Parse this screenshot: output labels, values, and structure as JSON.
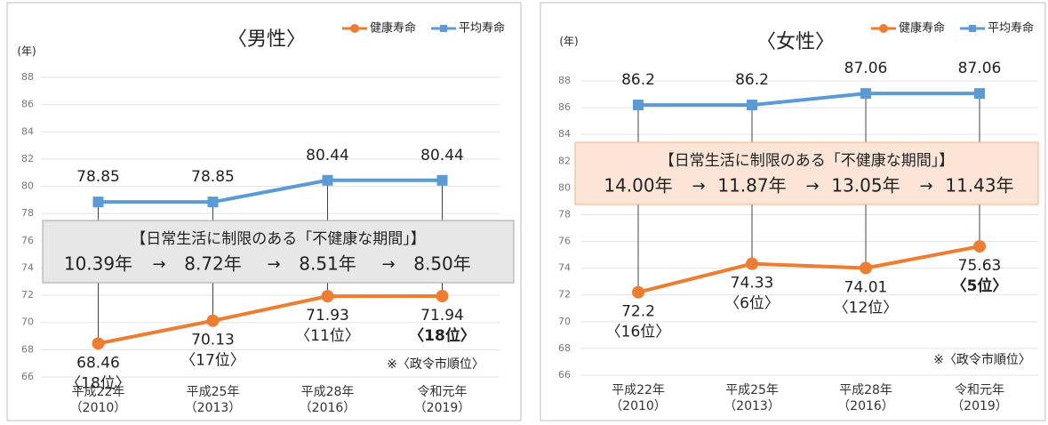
{
  "chart_data": [
    {
      "type": "line",
      "title": "〈男性〉",
      "y_label": "(年)",
      "categories": [
        "平成22年\n（2010）",
        "平成25年\n（2013）",
        "平成28年\n（2016）",
        "令和元年\n（2019）"
      ],
      "series": [
        {
          "name": "健康寿命",
          "color": "#ed7d31",
          "marker": "circle",
          "values": [
            68.46,
            70.13,
            71.93,
            71.94
          ],
          "ranks": [
            "〈18位〉",
            "〈17位〉",
            "〈11位〉",
            "〈18位〉"
          ]
        },
        {
          "name": "平均寿命",
          "color": "#5b9bd5",
          "marker": "square",
          "values": [
            78.85,
            78.85,
            80.44,
            80.44
          ]
        }
      ],
      "highlight_index": 3,
      "ylim": [
        66,
        88
      ],
      "yticks": [
        66,
        68,
        70,
        72,
        74,
        76,
        78,
        80,
        82,
        84,
        86,
        88
      ],
      "grid": true,
      "legend": "top-right",
      "note": "※〈政令市順位〉",
      "box": {
        "title": "【日常生活に制限のある「不健康な期間」】",
        "periods": [
          "10.39年",
          "8.72年",
          "8.51年",
          "8.50年"
        ],
        "arrow": "→",
        "fill": "#e7e7e7",
        "border": "#a6a6a6"
      }
    },
    {
      "type": "line",
      "title": "〈女性〉",
      "y_label": "(年)",
      "categories": [
        "平成22年\n（2010）",
        "平成25年\n（2013）",
        "平成28年\n（2016）",
        "令和元年\n（2019）"
      ],
      "series": [
        {
          "name": "健康寿命",
          "color": "#ed7d31",
          "marker": "circle",
          "values": [
            72.2,
            74.33,
            74.01,
            75.63
          ],
          "ranks": [
            "〈16位〉",
            "〈6位〉",
            "〈12位〉",
            "〈5位〉"
          ]
        },
        {
          "name": "平均寿命",
          "color": "#5b9bd5",
          "marker": "square",
          "values": [
            86.2,
            86.2,
            87.06,
            87.06
          ]
        }
      ],
      "highlight_index": 3,
      "ylim": [
        66,
        88
      ],
      "yticks": [
        66,
        68,
        70,
        72,
        74,
        76,
        78,
        80,
        82,
        84,
        86,
        88
      ],
      "grid": true,
      "legend": "top-right",
      "note": "※〈政令市順位〉",
      "box": {
        "title": "【日常生活に制限のある「不健康な期間」】",
        "periods": [
          "14.00年",
          "11.87年",
          "13.05年",
          "11.43年"
        ],
        "arrow": "→",
        "fill": "#fce4d6",
        "border": "#f4b183"
      }
    }
  ]
}
